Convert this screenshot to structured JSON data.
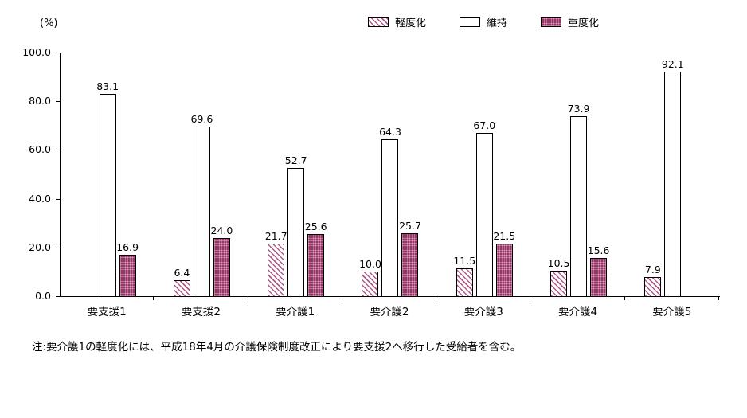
{
  "chart_data": {
    "type": "bar",
    "title": "",
    "unit_label": "(%)",
    "categories": [
      "要支援1",
      "要支援2",
      "要介護1",
      "要介護2",
      "要介護3",
      "要介護4",
      "要介護5"
    ],
    "series": [
      {
        "name": "軽度化",
        "style": "hatched",
        "values": [
          null,
          6.4,
          21.7,
          10.0,
          11.5,
          10.5,
          7.9
        ]
      },
      {
        "name": "維持",
        "style": "plain",
        "values": [
          83.1,
          69.6,
          52.7,
          64.3,
          67.0,
          73.9,
          92.1
        ]
      },
      {
        "name": "重度化",
        "style": "dotted",
        "values": [
          16.9,
          24.0,
          25.6,
          25.7,
          21.5,
          15.6,
          null
        ]
      }
    ],
    "ylim": [
      0,
      100
    ],
    "yticks": [
      "100.0",
      "80.0",
      "60.0",
      "40.0",
      "20.0",
      "0.0"
    ],
    "grid": false,
    "legend_position": "top"
  },
  "note": "注:要介護1の軽度化には、平成18年4月の介護保険制度改正により要支援2へ移行した受給者を含む。",
  "colors": {
    "accent": "#993366",
    "accent_light": "#b05a8c",
    "axis": "#000000"
  }
}
